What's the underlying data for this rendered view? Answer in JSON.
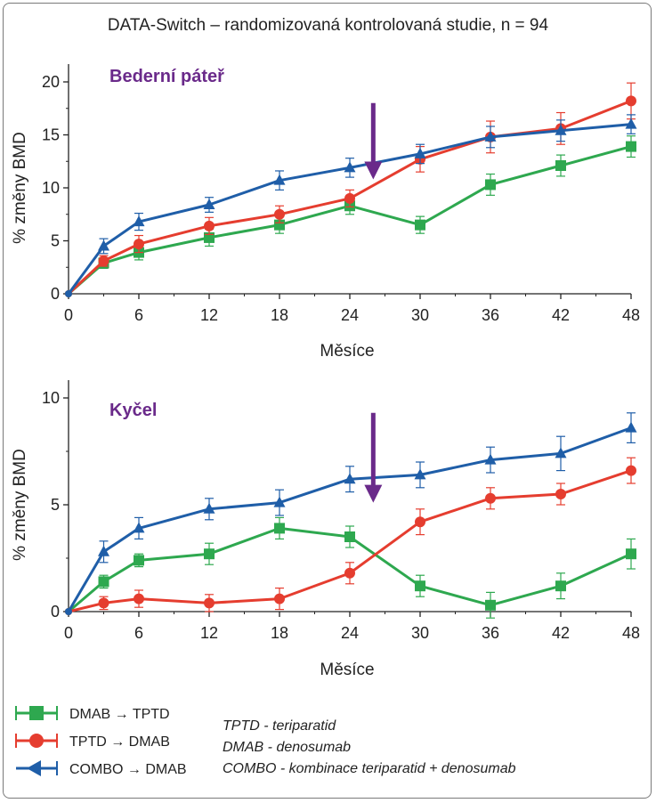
{
  "header": {
    "title": "DATA-Switch – randomizovaná kontrolovaná studie, n = 94"
  },
  "colors": {
    "dmab_tptd": "#2ea84f",
    "tptd_dmab": "#e53d2f",
    "combo_dmab": "#1f5ea8",
    "arrow": "#6a2a8a",
    "axis": "#222222"
  },
  "legend": [
    {
      "label": "DMAB → TPTD",
      "series": "dmab_tptd",
      "marker": "square"
    },
    {
      "label": "TPTD → DMAB",
      "series": "tptd_dmab",
      "marker": "circle"
    },
    {
      "label": "COMBO → DMAB",
      "series": "combo_dmab",
      "marker": "triangle"
    }
  ],
  "notes": [
    "TPTD - teriparatid",
    "DMAB - denosumab",
    "COMBO - kombinace teriparatid + denosumab"
  ],
  "chart_data": [
    {
      "type": "line",
      "title": "Bederní páteř",
      "xlabel": "Měsíce",
      "ylabel": "% změny BMD",
      "x_ticks": [
        0,
        6,
        12,
        18,
        24,
        30,
        36,
        42,
        48
      ],
      "y_ticks": [
        0,
        5,
        10,
        15,
        20
      ],
      "xlim": [
        0,
        48
      ],
      "ylim": [
        0,
        20
      ],
      "annotation": {
        "type": "arrow",
        "x_month": 26,
        "from_value": 18,
        "to_value": 10.8
      },
      "series": [
        {
          "name": "DMAB → TPTD",
          "key": "dmab_tptd",
          "marker": "square",
          "x": [
            0,
            3,
            6,
            12,
            18,
            24,
            30,
            36,
            42,
            48
          ],
          "y": [
            0,
            2.9,
            3.9,
            5.3,
            6.5,
            8.3,
            6.5,
            10.3,
            12.1,
            13.9
          ],
          "err": [
            0,
            0.5,
            0.7,
            0.8,
            0.8,
            0.8,
            0.8,
            1.0,
            1.0,
            1.0
          ]
        },
        {
          "name": "TPTD → DMAB",
          "key": "tptd_dmab",
          "marker": "circle",
          "x": [
            0,
            3,
            6,
            12,
            18,
            24,
            30,
            36,
            42,
            48
          ],
          "y": [
            0,
            3.1,
            4.7,
            6.4,
            7.5,
            9.0,
            12.7,
            14.8,
            15.6,
            18.2
          ],
          "err": [
            0,
            0.5,
            0.8,
            0.8,
            0.8,
            0.8,
            1.2,
            1.5,
            1.5,
            1.7
          ]
        },
        {
          "name": "COMBO → DMAB",
          "key": "combo_dmab",
          "marker": "triangle",
          "x": [
            0,
            3,
            6,
            12,
            18,
            24,
            30,
            36,
            42,
            48
          ],
          "y": [
            0,
            4.5,
            6.8,
            8.4,
            10.7,
            11.9,
            13.2,
            14.8,
            15.4,
            16.0
          ],
          "err": [
            0,
            0.7,
            0.8,
            0.7,
            0.9,
            0.9,
            0.9,
            1.0,
            1.0,
            0.9
          ]
        }
      ]
    },
    {
      "type": "line",
      "title": "Kyčel",
      "xlabel": "Měsíce",
      "ylabel": "% změny BMD",
      "x_ticks": [
        0,
        6,
        12,
        18,
        24,
        30,
        36,
        42,
        48
      ],
      "y_ticks": [
        0,
        5,
        10
      ],
      "xlim": [
        0,
        48
      ],
      "ylim": [
        0,
        10
      ],
      "annotation": {
        "type": "arrow",
        "x_month": 26,
        "from_value": 9.3,
        "to_value": 5.1
      },
      "series": [
        {
          "name": "DMAB → TPTD",
          "key": "dmab_tptd",
          "marker": "square",
          "x": [
            0,
            3,
            6,
            12,
            18,
            24,
            30,
            36,
            42,
            48
          ],
          "y": [
            0,
            1.4,
            2.4,
            2.7,
            3.9,
            3.5,
            1.2,
            0.3,
            1.2,
            2.7
          ],
          "err": [
            0,
            0.3,
            0.3,
            0.5,
            0.5,
            0.5,
            0.5,
            0.6,
            0.6,
            0.7
          ]
        },
        {
          "name": "TPTD → DMAB",
          "key": "tptd_dmab",
          "marker": "circle",
          "x": [
            0,
            3,
            6,
            12,
            18,
            24,
            30,
            36,
            42,
            48
          ],
          "y": [
            0,
            0.4,
            0.6,
            0.4,
            0.6,
            1.8,
            4.2,
            5.3,
            5.5,
            6.6
          ],
          "err": [
            0,
            0.3,
            0.4,
            0.4,
            0.5,
            0.5,
            0.6,
            0.5,
            0.5,
            0.6
          ]
        },
        {
          "name": "COMBO → DMAB",
          "key": "combo_dmab",
          "marker": "triangle",
          "x": [
            0,
            3,
            6,
            12,
            18,
            24,
            30,
            36,
            42,
            48
          ],
          "y": [
            0,
            2.8,
            3.9,
            4.8,
            5.1,
            6.2,
            6.4,
            7.1,
            7.4,
            8.6
          ],
          "err": [
            0,
            0.5,
            0.5,
            0.5,
            0.6,
            0.6,
            0.6,
            0.6,
            0.8,
            0.7
          ]
        }
      ]
    }
  ]
}
